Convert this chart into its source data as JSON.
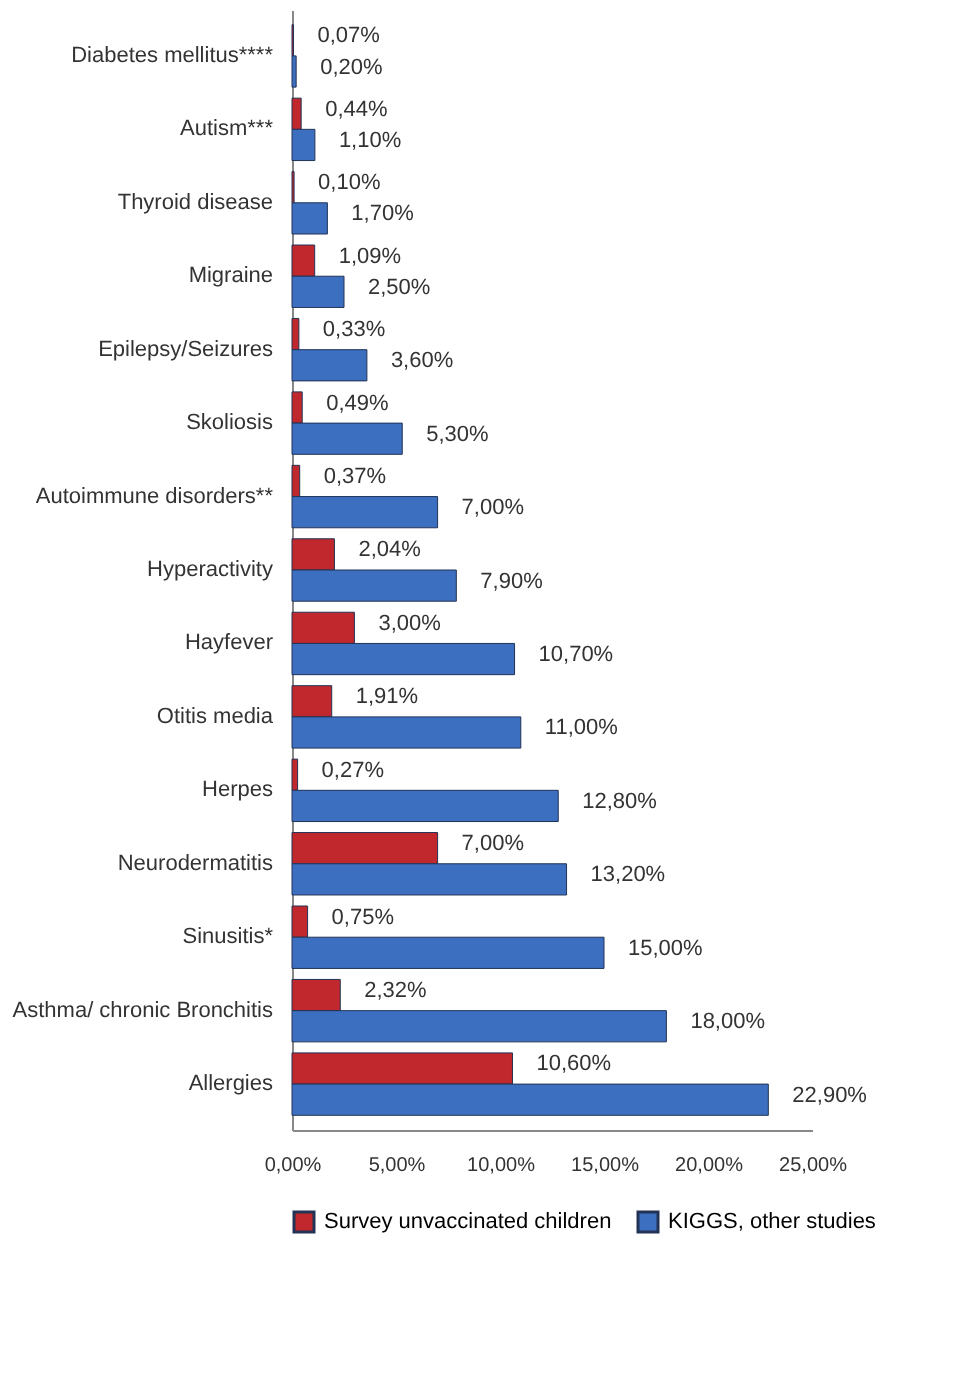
{
  "chart_data": {
    "type": "bar",
    "orientation": "horizontal",
    "categories": [
      "Diabetes mellitus****",
      "Autism***",
      "Thyroid disease",
      "Migraine",
      "Epilepsy/Seizures",
      "Skoliosis",
      "Autoimmune disorders**",
      "Hyperactivity",
      "Hayfever",
      "Otitis media",
      "Herpes",
      "Neurodermatitis",
      "Sinusitis*",
      "Asthma/ chronic Bronchitis",
      "Allergies"
    ],
    "series": [
      {
        "name": "Survey unvaccinated children",
        "color": "#c0282d",
        "values": [
          0.07,
          0.44,
          0.1,
          1.09,
          0.33,
          0.49,
          0.37,
          2.04,
          3.0,
          1.91,
          0.27,
          7.0,
          0.75,
          2.32,
          10.6
        ],
        "value_labels": [
          "0,07%",
          "0,44%",
          "0,10%",
          "1,09%",
          "0,33%",
          "0,49%",
          "0,37%",
          "2,04%",
          "3,00%",
          "1,91%",
          "0,27%",
          "7,00%",
          "0,75%",
          "2,32%",
          "10,60%"
        ]
      },
      {
        "name": "KIGGS, other studies",
        "color": "#3c6fc0",
        "values": [
          0.2,
          1.1,
          1.7,
          2.5,
          3.6,
          5.3,
          7.0,
          7.9,
          10.7,
          11.0,
          12.8,
          13.2,
          15.0,
          18.0,
          22.9
        ],
        "value_labels": [
          "0,20%",
          "1,10%",
          "1,70%",
          "2,50%",
          "3,60%",
          "5,30%",
          "7,00%",
          "7,90%",
          "10,70%",
          "11,00%",
          "12,80%",
          "13,20%",
          "15,00%",
          "18,00%",
          "22,90%"
        ]
      }
    ],
    "xlim": [
      0,
      25
    ],
    "xticks": [
      {
        "value": 0,
        "label": "0,00%"
      },
      {
        "value": 5,
        "label": "5,00%"
      },
      {
        "value": 10,
        "label": "10,00%"
      },
      {
        "value": 15,
        "label": "15,00%"
      },
      {
        "value": 20,
        "label": "20,00%"
      },
      {
        "value": 25,
        "label": "25,00%"
      }
    ],
    "grid": false,
    "legend": "bottom"
  }
}
